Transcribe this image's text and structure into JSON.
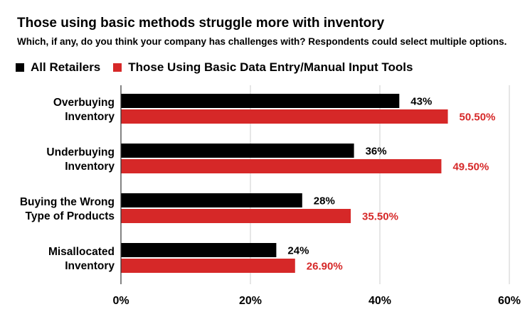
{
  "chart_data": {
    "type": "bar",
    "orientation": "horizontal",
    "title": "Those using basic methods struggle more with inventory",
    "subtitle": "Which, if any, do you think your company has challenges with? Respondents could select multiple options.",
    "categories": [
      [
        "Overbuying",
        "Inventory"
      ],
      [
        "Underbuying",
        "Inventory"
      ],
      [
        "Buying the Wrong",
        "Type of Products"
      ],
      [
        "Misallocated",
        "Inventory"
      ]
    ],
    "series": [
      {
        "name": "All Retailers",
        "color": "#000000",
        "values": [
          43,
          36,
          28,
          24
        ],
        "value_labels": [
          "43%",
          "36%",
          "28%",
          "24%"
        ]
      },
      {
        "name": "Those Using Basic Data Entry/Manual Input Tools",
        "color": "#d62828",
        "values": [
          50.5,
          49.5,
          35.5,
          26.9
        ],
        "value_labels": [
          "50.50%",
          "49.50%",
          "35.50%",
          "26.90%"
        ]
      }
    ],
    "xlim": [
      0,
      60
    ],
    "xticks": [
      0,
      20,
      40,
      60
    ],
    "xtick_labels": [
      "0%",
      "20%",
      "40%",
      "60%"
    ],
    "legend_position": "top-left",
    "grid": true
  }
}
